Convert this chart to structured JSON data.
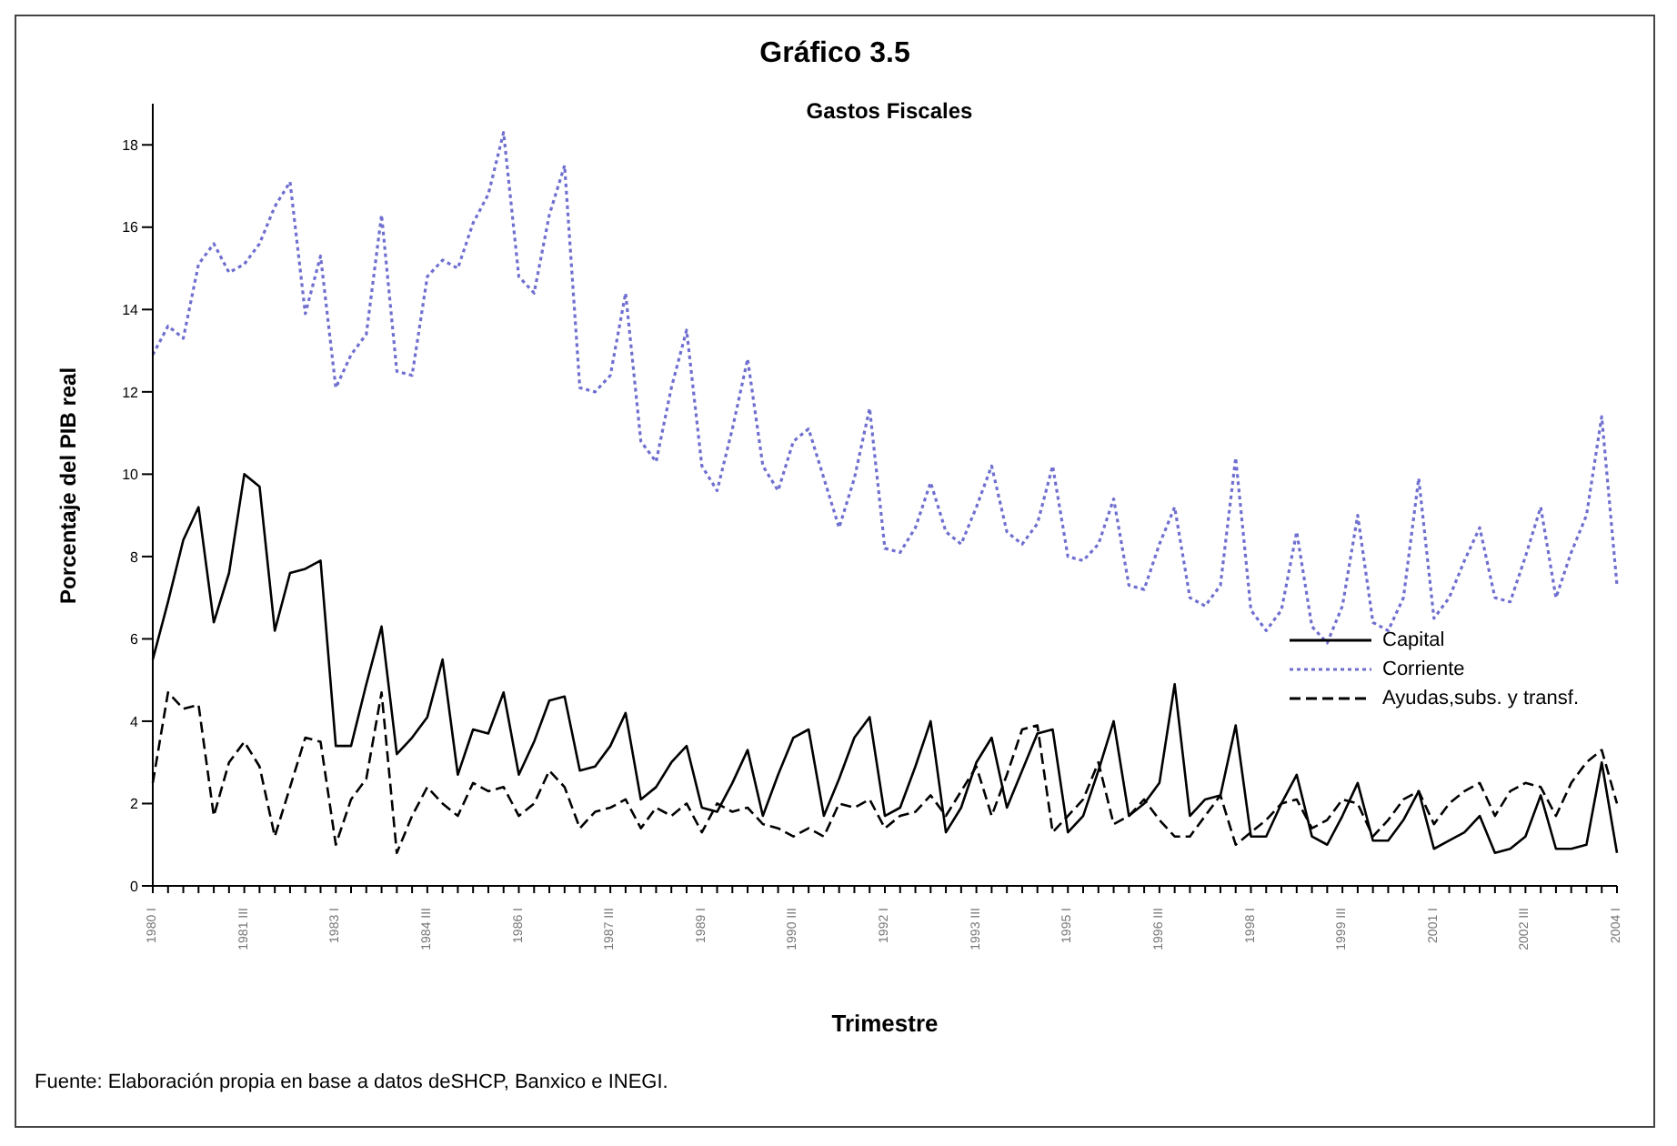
{
  "chart_data": {
    "type": "line",
    "title": "Gráfico 3.5",
    "subtitle": "Gastos Fiscales",
    "xlabel": "Trimestre",
    "ylabel": "Porcentaje del PIB real",
    "annotations": [
      "Fuente: Elaboración propia en base a datos deSHCP, Banxico e INEGI."
    ],
    "categories": [
      "1980 I",
      null,
      null,
      null,
      null,
      null,
      "1981 III",
      null,
      null,
      null,
      null,
      null,
      "1983 I",
      null,
      null,
      null,
      null,
      null,
      "1984 III",
      null,
      null,
      null,
      null,
      null,
      "1986 I",
      null,
      null,
      null,
      null,
      null,
      "1987 III",
      null,
      null,
      null,
      null,
      null,
      "1989 I",
      null,
      null,
      null,
      null,
      null,
      "1990 III",
      null,
      null,
      null,
      null,
      null,
      "1992 I",
      null,
      null,
      null,
      null,
      null,
      "1993 III",
      null,
      null,
      null,
      null,
      null,
      "1995 I",
      null,
      null,
      null,
      null,
      null,
      "1996 III",
      null,
      null,
      null,
      null,
      null,
      "1998 I",
      null,
      null,
      null,
      null,
      null,
      "1999 III",
      null,
      null,
      null,
      null,
      null,
      "2001 I",
      null,
      null,
      null,
      null,
      null,
      "2002 III",
      null,
      null,
      null,
      null,
      null,
      "2004 I"
    ],
    "series": [
      {
        "name": "Capital",
        "color": "#000000",
        "line_style": "solid",
        "values": [
          5.5,
          6.9,
          8.4,
          9.2,
          6.4,
          7.6,
          10.0,
          9.7,
          6.2,
          7.6,
          7.7,
          7.9,
          3.4,
          3.4,
          4.9,
          6.3,
          3.2,
          3.6,
          4.1,
          5.5,
          2.7,
          3.8,
          3.7,
          4.7,
          2.7,
          3.5,
          4.5,
          4.6,
          2.8,
          2.9,
          3.4,
          4.2,
          2.1,
          2.4,
          3.0,
          3.4,
          1.9,
          1.8,
          2.5,
          3.3,
          1.7,
          2.7,
          3.6,
          3.8,
          1.7,
          2.6,
          3.6,
          4.1,
          1.7,
          1.9,
          2.9,
          4.0,
          1.3,
          1.9,
          3.0,
          3.6,
          1.9,
          2.8,
          3.7,
          3.8,
          1.3,
          1.7,
          2.8,
          4.0,
          1.7,
          2.0,
          2.5,
          4.9,
          1.7,
          2.1,
          2.2,
          3.9,
          1.2,
          1.2,
          2.0,
          2.7,
          1.2,
          1.0,
          1.7,
          2.5,
          1.1,
          1.1,
          1.6,
          2.3,
          0.9,
          1.1,
          1.3,
          1.7,
          0.8,
          0.9,
          1.2,
          2.2,
          0.9,
          0.9,
          1.0,
          3.0,
          0.8
        ]
      },
      {
        "name": "Corriente",
        "color": "#6f6fd0",
        "line_style": "dotted",
        "values": [
          12.9,
          13.6,
          13.3,
          15.1,
          15.6,
          14.9,
          15.1,
          15.6,
          16.5,
          17.1,
          13.9,
          15.3,
          12.1,
          12.9,
          13.4,
          16.3,
          12.5,
          12.4,
          14.8,
          15.2,
          15.0,
          16.1,
          16.8,
          18.3,
          14.8,
          14.4,
          16.3,
          17.5,
          12.1,
          12.0,
          12.4,
          14.4,
          10.8,
          10.3,
          12.1,
          13.5,
          10.2,
          9.6,
          11.1,
          12.8,
          10.2,
          9.6,
          10.8,
          11.1,
          9.9,
          8.7,
          9.9,
          11.6,
          8.2,
          8.1,
          8.7,
          9.8,
          8.6,
          8.3,
          9.2,
          10.2,
          8.6,
          8.3,
          8.8,
          10.2,
          8.0,
          7.9,
          8.3,
          9.4,
          7.3,
          7.2,
          8.3,
          9.2,
          7.0,
          6.8,
          7.3,
          10.4,
          6.7,
          6.2,
          6.7,
          8.6,
          6.3,
          5.9,
          6.8,
          9.0,
          6.4,
          6.2,
          7.0,
          9.9,
          6.5,
          7.0,
          7.9,
          8.7,
          7.0,
          6.9,
          8.0,
          9.2,
          7.0,
          8.1,
          9.0,
          11.4,
          7.3
        ]
      },
      {
        "name": "Ayudas,subs. y transf.",
        "color": "#000000",
        "line_style": "dashed",
        "values": [
          2.5,
          4.7,
          4.3,
          4.4,
          1.7,
          3.0,
          3.5,
          2.9,
          1.2,
          2.4,
          3.6,
          3.5,
          1.0,
          2.1,
          2.6,
          4.7,
          0.8,
          1.7,
          2.4,
          2.0,
          1.7,
          2.5,
          2.3,
          2.4,
          1.7,
          2.0,
          2.8,
          2.4,
          1.4,
          1.8,
          1.9,
          2.1,
          1.4,
          1.9,
          1.7,
          2.0,
          1.3,
          2.0,
          1.8,
          1.9,
          1.5,
          1.4,
          1.2,
          1.4,
          1.2,
          2.0,
          1.9,
          2.1,
          1.4,
          1.7,
          1.8,
          2.2,
          1.7,
          2.3,
          2.9,
          1.7,
          2.7,
          3.8,
          3.9,
          1.3,
          1.7,
          2.1,
          3.0,
          1.5,
          1.7,
          2.1,
          1.6,
          1.2,
          1.2,
          1.7,
          2.2,
          1.0,
          1.3,
          1.6,
          2.0,
          2.1,
          1.4,
          1.6,
          2.1,
          2.0,
          1.2,
          1.6,
          2.1,
          2.3,
          1.5,
          2.0,
          2.3,
          2.5,
          1.7,
          2.3,
          2.5,
          2.4,
          1.7,
          2.5,
          3.0,
          3.3,
          2.0
        ]
      }
    ],
    "ylim": [
      0,
      19
    ],
    "yticks": [
      0,
      2,
      4,
      6,
      8,
      10,
      12,
      14,
      16,
      18
    ],
    "grid": false,
    "legend": "right",
    "marker": "none"
  }
}
